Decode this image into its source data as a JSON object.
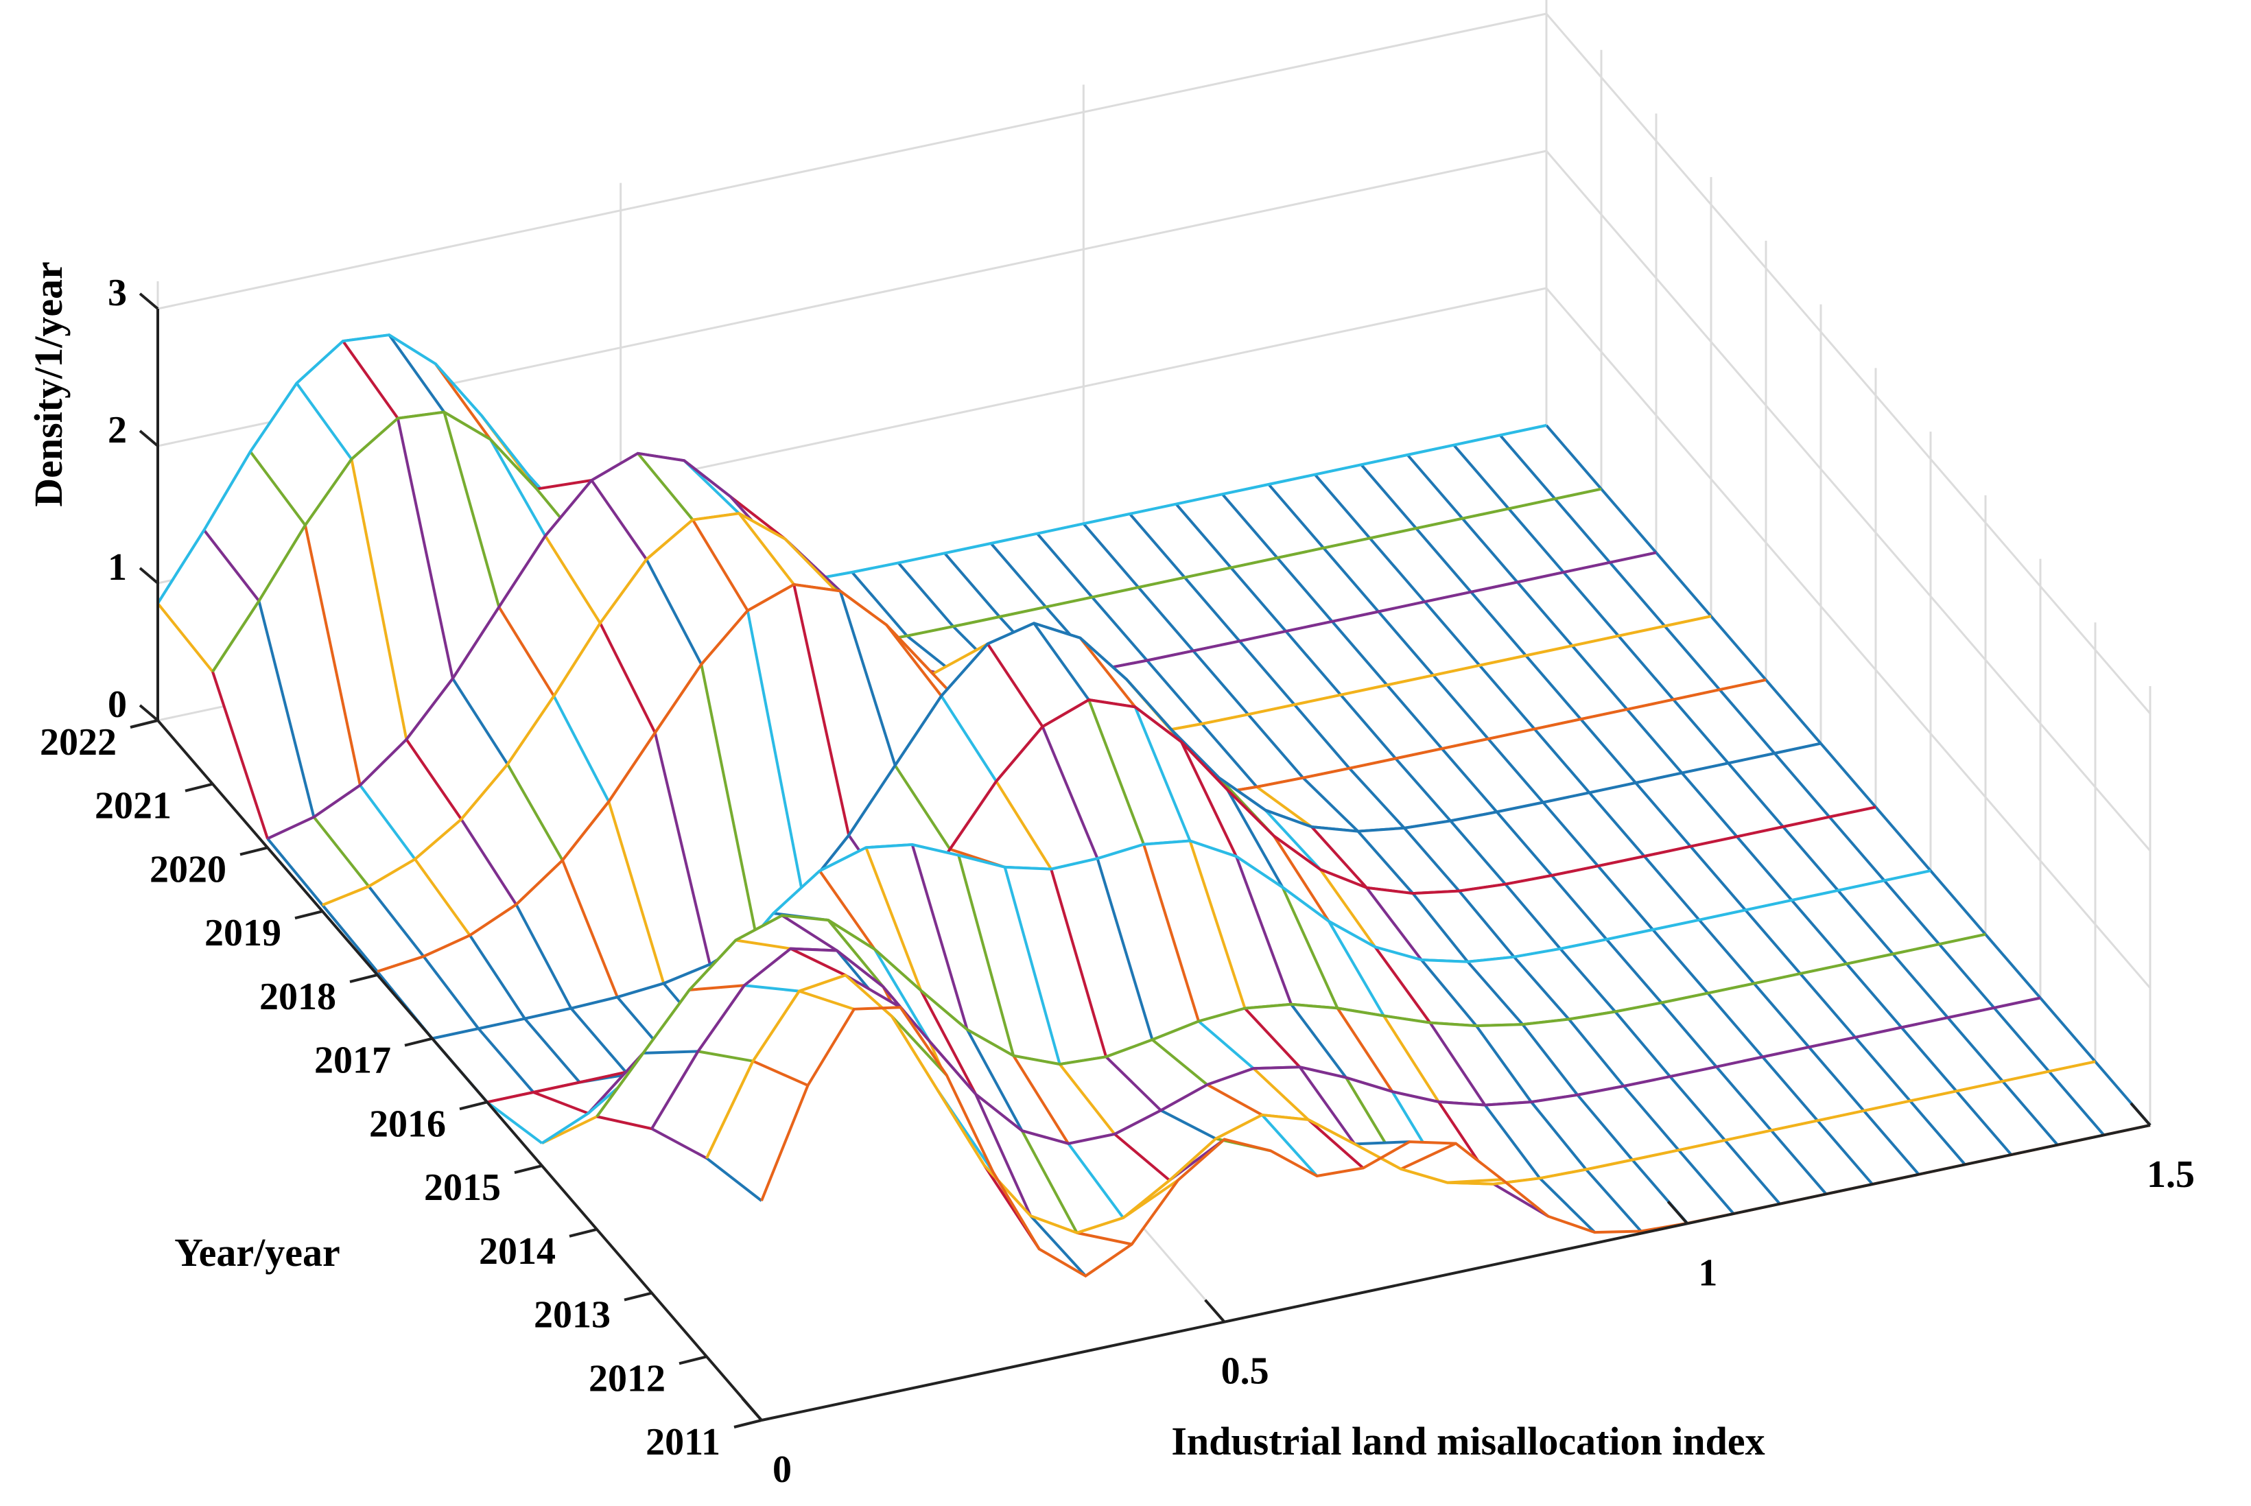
{
  "chart_data": {
    "type": "surface3d",
    "xlabel": "Industrial land misallocation index",
    "ylabel": "Year/year",
    "zlabel": "Density/1/year",
    "x_ticks": [
      "0",
      "0.5",
      "1",
      "1.5"
    ],
    "y_ticks": [
      "2011",
      "2012",
      "2013",
      "2014",
      "2015",
      "2016",
      "2017",
      "2018",
      "2019",
      "2020",
      "2021",
      "2022"
    ],
    "z_ticks": [
      "0",
      "1",
      "2",
      "3"
    ],
    "xlim": [
      0,
      1.5
    ],
    "ylim": [
      2011,
      2022
    ],
    "zlim": [
      0,
      3
    ],
    "grid": true,
    "x": [
      0,
      0.05,
      0.1,
      0.15,
      0.2,
      0.25,
      0.3,
      0.35,
      0.4,
      0.45,
      0.5,
      0.55,
      0.6,
      0.65,
      0.7,
      0.75,
      0.8,
      0.85,
      0.9,
      0.95,
      1.0,
      1.05,
      1.1,
      1.15,
      1.2,
      1.25,
      1.3,
      1.35,
      1.4,
      1.45,
      1.5
    ],
    "series": [
      {
        "name": "2011",
        "peaks": [
          {
            "center": 0.12,
            "height": 2.9,
            "width": 0.11
          },
          {
            "center": 0.5,
            "height": 1.3,
            "width": 0.08
          },
          {
            "center": 0.72,
            "height": 1.0,
            "width": 0.08
          }
        ]
      },
      {
        "name": "2012",
        "peaks": [
          {
            "center": 0.13,
            "height": 2.6,
            "width": 0.12
          },
          {
            "center": 0.6,
            "height": 0.9,
            "width": 0.1
          }
        ]
      },
      {
        "name": "2013",
        "peaks": [
          {
            "center": 0.16,
            "height": 2.3,
            "width": 0.14
          },
          {
            "center": 0.65,
            "height": 0.7,
            "width": 0.12
          }
        ]
      },
      {
        "name": "2014",
        "peaks": [
          {
            "center": 0.2,
            "height": 2.0,
            "width": 0.15
          },
          {
            "center": 0.7,
            "height": 0.6,
            "width": 0.14
          }
        ]
      },
      {
        "name": "2015",
        "peaks": [
          {
            "center": 0.35,
            "height": 1.8,
            "width": 0.16
          },
          {
            "center": 0.7,
            "height": 1.2,
            "width": 0.12
          }
        ]
      },
      {
        "name": "2016",
        "peaks": [
          {
            "center": 0.65,
            "height": 2.0,
            "width": 0.14
          }
        ]
      },
      {
        "name": "2017",
        "peaks": [
          {
            "center": 0.64,
            "height": 2.1,
            "width": 0.14
          }
        ]
      },
      {
        "name": "2018",
        "peaks": [
          {
            "center": 0.45,
            "height": 2.2,
            "width": 0.15
          }
        ]
      },
      {
        "name": "2019",
        "peaks": [
          {
            "center": 0.42,
            "height": 2.3,
            "width": 0.15
          }
        ]
      },
      {
        "name": "2020",
        "peaks": [
          {
            "center": 0.4,
            "height": 2.3,
            "width": 0.15
          }
        ]
      },
      {
        "name": "2021",
        "peaks": [
          {
            "center": 0.22,
            "height": 2.4,
            "width": 0.15
          }
        ]
      },
      {
        "name": "2022",
        "peaks": [
          {
            "center": 0.22,
            "height": 2.5,
            "width": 0.15
          }
        ]
      }
    ],
    "colors": [
      "#1f77b4",
      "#e8641a",
      "#f2b21b",
      "#7e2f8e",
      "#77ac30",
      "#2bbbe6",
      "#c2183b"
    ]
  }
}
